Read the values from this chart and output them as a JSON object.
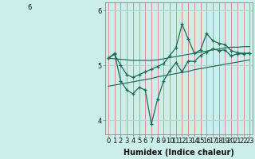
{
  "title": "",
  "xlabel": "Humidex (Indice chaleur)",
  "bg_color": "#cceee8",
  "line_color": "#1a6b5a",
  "grid_color_v": "#e08080",
  "grid_color_h": "#b0d8d0",
  "x_values": [
    0,
    1,
    2,
    3,
    4,
    5,
    6,
    7,
    8,
    9,
    10,
    11,
    12,
    13,
    14,
    15,
    16,
    17,
    18,
    19,
    20,
    21,
    22,
    23
  ],
  "series_lower": [
    5.13,
    5.22,
    4.72,
    4.55,
    4.48,
    4.6,
    4.55,
    3.93,
    4.38,
    4.72,
    4.9,
    5.05,
    4.88,
    5.08,
    5.07,
    5.18,
    5.24,
    5.3,
    5.27,
    5.28,
    5.17,
    5.21,
    5.21,
    5.22
  ],
  "series_upper": [
    5.13,
    5.2,
    5.0,
    4.83,
    4.78,
    4.83,
    4.88,
    4.93,
    4.98,
    5.03,
    5.18,
    5.32,
    5.75,
    5.48,
    5.22,
    5.28,
    5.58,
    5.45,
    5.4,
    5.38,
    5.27,
    5.23,
    5.22,
    5.22
  ],
  "trend_upper": [
    5.13,
    5.12,
    5.11,
    5.1,
    5.09,
    5.09,
    5.09,
    5.09,
    5.1,
    5.12,
    5.14,
    5.16,
    5.18,
    5.2,
    5.22,
    5.24,
    5.26,
    5.28,
    5.3,
    5.32,
    5.33,
    5.33,
    5.34,
    5.34
  ],
  "trend_lower": [
    4.62,
    4.64,
    4.66,
    4.68,
    4.7,
    4.72,
    4.74,
    4.76,
    4.79,
    4.81,
    4.83,
    4.85,
    4.87,
    4.89,
    4.92,
    4.94,
    4.96,
    4.98,
    5.0,
    5.02,
    5.04,
    5.06,
    5.08,
    5.1
  ],
  "ylim": [
    3.75,
    6.15
  ],
  "yticks": [
    4,
    5,
    6
  ],
  "ytick_labels": [
    "4",
    "5",
    "6"
  ],
  "xticks": [
    0,
    1,
    2,
    3,
    4,
    5,
    6,
    7,
    8,
    9,
    10,
    11,
    12,
    13,
    14,
    15,
    16,
    17,
    18,
    19,
    20,
    21,
    22,
    23
  ],
  "label_fontsize": 6.5,
  "tick_fontsize": 6.0,
  "xlabel_fontsize": 7.0
}
